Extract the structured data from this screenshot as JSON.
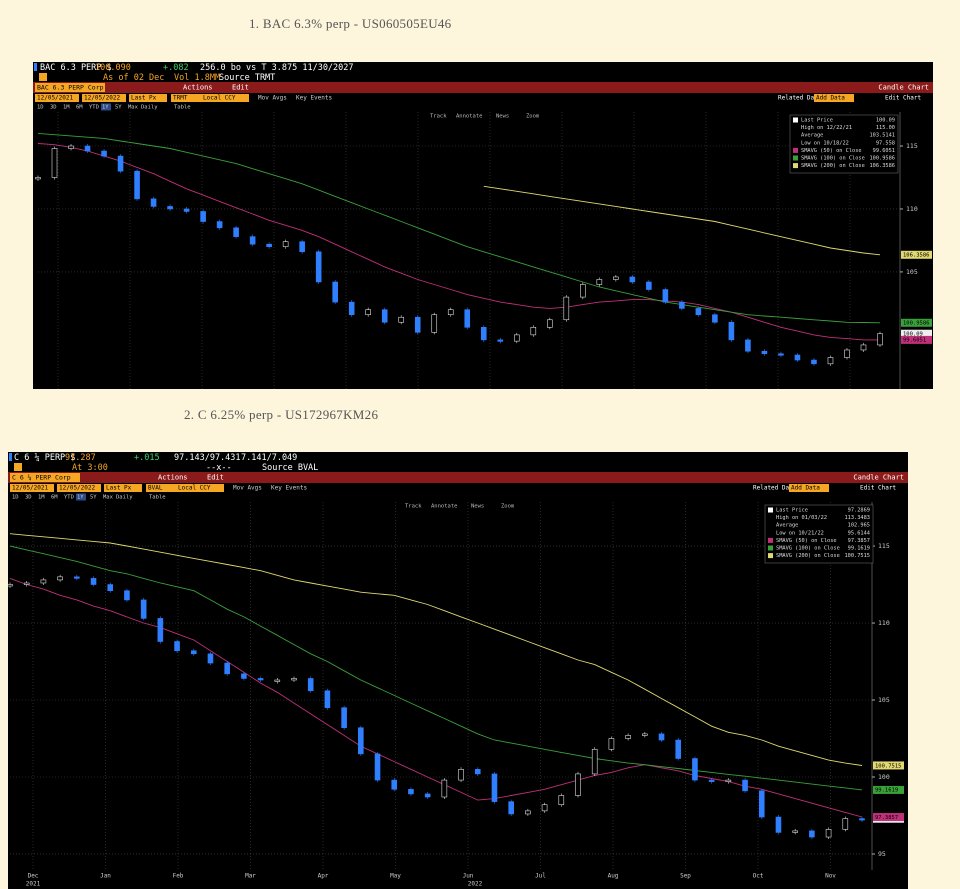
{
  "captions": [
    "1. BAC 6.3% perp - US060505EU46",
    "2. C 6.25% perp - US172967KM26"
  ],
  "chart_data": [
    {
      "type": "candlestick",
      "header": {
        "row1": [
          {
            "text": "BAC 6.3 PERP $",
            "color": "#ffffff"
          },
          {
            "text": "100.090",
            "color": "#f5a623"
          },
          {
            "text": "+.082",
            "color": "#3cd070"
          },
          {
            "text": "256.0 bo vs T 3.875 11/30/2027",
            "color": "#ffffff"
          }
        ],
        "row2": [
          {
            "text": "As of 02 Dec",
            "color": "#f5a623"
          },
          {
            "text": "Vol 1.8MM",
            "color": "#f5a623"
          },
          {
            "text": "Source TRMT",
            "color": "#ffffff"
          }
        ]
      },
      "toolbar": {
        "security": "BAC 6.3 PERP Corp",
        "actions": "Actions",
        "edit": "Edit",
        "chart_type": "Candle Chart",
        "fields": [
          "12/05/2021",
          "12/05/2022",
          "Last Px",
          "TRMT",
          "Local CCY"
        ],
        "options": [
          "Mov Avgs",
          "Key Events"
        ],
        "periods": [
          "1D",
          "3D",
          "1M",
          "6M",
          "YTD",
          "1Y",
          "5Y",
          "Max",
          "Daily",
          "Table"
        ],
        "tools": [
          "Track",
          "Annotate",
          "News",
          "Zoom"
        ],
        "related": "Related Data",
        "add_data": "Add Data",
        "edit_chart": "Edit Chart"
      },
      "ylim": [
        95.7,
        117.7
      ],
      "yticks": [
        105,
        110,
        115
      ],
      "grid": true,
      "stats": [
        {
          "label": "High on 12/22/21",
          "value": "115.00"
        },
        {
          "label": "Average",
          "value": "103.5141"
        },
        {
          "label": "Low on 10/18/22",
          "value": "97.558"
        }
      ],
      "series": [
        {
          "name": "Last Price",
          "color": "#2f7fff",
          "last_label": "100.09",
          "values": [
            112.5,
            114.8,
            115,
            114.6,
            114.2,
            113,
            110.8,
            110.2,
            110,
            109.8,
            109,
            108.5,
            107.8,
            107.2,
            107,
            107.4,
            106.6,
            104.2,
            102.6,
            101.6,
            102,
            101,
            101.4,
            100.2,
            101.6,
            102,
            100.6,
            99.6,
            99.5,
            100,
            100.6,
            101.2,
            103,
            104,
            104.4,
            104.6,
            104.2,
            103.6,
            102.6,
            102.1,
            101.6,
            101,
            99.6,
            98.7,
            98.5,
            98.4,
            98,
            97.7,
            98.2,
            98.8,
            99.2,
            100.09
          ]
        },
        {
          "name": "SMAVG (50) on Close",
          "color": "#c0307a",
          "last_label": "99.6051",
          "values": [
            115.2,
            115.1,
            114.9,
            114.6,
            114.2,
            113.8,
            113.3,
            112.8,
            112.2,
            111.6,
            111.1,
            110.6,
            110.1,
            109.6,
            109.1,
            108.7,
            108.3,
            107.8,
            107.2,
            106.6,
            106,
            105.4,
            104.9,
            104.4,
            104,
            103.6,
            103.2,
            102.9,
            102.6,
            102.4,
            102.2,
            102.1,
            102.2,
            102.4,
            102.6,
            102.7,
            102.8,
            102.8,
            102.7,
            102.6,
            102.4,
            102.1,
            101.8,
            101.4,
            101,
            100.6,
            100.3,
            100,
            99.8,
            99.7,
            99.6,
            99.6
          ]
        },
        {
          "name": "SMAVG (100) on Close",
          "color": "#3aa03a",
          "last_label": "100.9586",
          "values": [
            116,
            115.9,
            115.8,
            115.7,
            115.6,
            115.4,
            115.2,
            115,
            114.8,
            114.5,
            114.2,
            113.9,
            113.6,
            113.2,
            112.8,
            112.4,
            112,
            111.5,
            111,
            110.5,
            110,
            109.5,
            109,
            108.5,
            108,
            107.5,
            107,
            106.6,
            106.2,
            105.8,
            105.4,
            105,
            104.6,
            104.2,
            103.8,
            103.5,
            103.2,
            102.9,
            102.6,
            102.4,
            102.2,
            102,
            101.8,
            101.6,
            101.5,
            101.4,
            101.3,
            101.2,
            101.1,
            101,
            100.98,
            100.96
          ]
        },
        {
          "name": "SMAVG (200) on Close",
          "color": "#e0d870",
          "last_label": "106.3586",
          "values": [
            null,
            null,
            null,
            null,
            null,
            null,
            null,
            null,
            null,
            null,
            null,
            null,
            null,
            null,
            null,
            null,
            null,
            null,
            null,
            null,
            null,
            null,
            null,
            null,
            null,
            null,
            null,
            111.8,
            111.6,
            111.4,
            111.2,
            111,
            110.8,
            110.6,
            110.4,
            110.2,
            110,
            109.8,
            109.6,
            109.4,
            109.2,
            109,
            108.7,
            108.4,
            108.1,
            107.8,
            107.5,
            107.2,
            106.9,
            106.7,
            106.5,
            106.36
          ]
        }
      ]
    },
    {
      "type": "candlestick",
      "header": {
        "row1": [
          {
            "text": "C 6 ¼ PERP $",
            "color": "#ffffff"
          },
          {
            "text": "97.287",
            "color": "#f5a623"
          },
          {
            "text": "+.015",
            "color": "#3cd070"
          },
          {
            "text": "97.143/97.431",
            "color": "#ffffff"
          },
          {
            "text": "7.141/7.049",
            "color": "#ffffff"
          }
        ],
        "row2": [
          {
            "text": "At 3:00",
            "color": "#f5a623"
          },
          {
            "text": "--x--",
            "color": "#ffffff"
          },
          {
            "text": "Source BVAL",
            "color": "#ffffff"
          }
        ]
      },
      "toolbar": {
        "security": "C 6 ¼ PERP Corp",
        "actions": "Actions",
        "edit": "Edit",
        "chart_type": "Candle Chart",
        "fields": [
          "12/05/2021",
          "12/05/2022",
          "Last Px",
          "BVAL",
          "Local CCY"
        ],
        "options": [
          "Mov Avgs",
          "Key Events"
        ],
        "periods": [
          "1D",
          "3D",
          "1M",
          "6M",
          "YTD",
          "1Y",
          "5Y",
          "Max",
          "Daily",
          "Table"
        ],
        "tools": [
          "Track",
          "Annotate",
          "News",
          "Zoom"
        ],
        "related": "Related Data",
        "add_data": "Add Data",
        "edit_chart": "Edit Chart"
      },
      "months": [
        "Dec",
        "Jan",
        "Feb",
        "Mar",
        "Apr",
        "May",
        "Jun",
        "Jul",
        "Aug",
        "Sep",
        "Oct",
        "Nov"
      ],
      "years": [
        "2021",
        "2022"
      ],
      "ylim": [
        93.96,
        117.86
      ],
      "yticks": [
        95,
        100,
        105,
        110,
        115
      ],
      "grid": true,
      "stats": [
        {
          "label": "High on 01/03/22",
          "value": "113.3483"
        },
        {
          "label": "Average",
          "value": "102.965"
        },
        {
          "label": "Low on 10/21/22",
          "value": "95.6144"
        }
      ],
      "series": [
        {
          "name": "Last Price",
          "color": "#2f7fff",
          "last_label": "97.2869",
          "values": [
            112.5,
            112.6,
            112.8,
            113,
            112.9,
            112.5,
            112.1,
            111.5,
            110.3,
            108.8,
            108.2,
            108,
            107.4,
            106.7,
            106.4,
            106.3,
            106.3,
            106.4,
            105.6,
            104.5,
            103.2,
            101.5,
            99.8,
            99.2,
            98.9,
            98.7,
            99.8,
            100.5,
            100.2,
            98.4,
            97.6,
            97.8,
            98.2,
            98.8,
            100.2,
            101.8,
            102.5,
            102.7,
            102.8,
            102.4,
            101.2,
            99.8,
            99.7,
            99.8,
            99.1,
            97.4,
            96.4,
            96.5,
            96.1,
            96.6,
            97.3,
            97.29
          ]
        },
        {
          "name": "SMAVG (50) on Close",
          "color": "#c0307a",
          "last_label": "97.3857",
          "values": [
            112.9,
            112.5,
            112.2,
            111.8,
            111.5,
            111.1,
            110.8,
            110.4,
            110,
            109.7,
            109.3,
            108.9,
            108.2,
            107.5,
            106.8,
            106.1,
            105.5,
            104.8,
            104.1,
            103.4,
            102.7,
            102,
            101.5,
            101,
            100.5,
            100,
            99.5,
            99,
            98.5,
            98.6,
            98.8,
            99,
            99.2,
            99.5,
            99.8,
            100.1,
            100.3,
            100.6,
            100.8,
            100.6,
            100.4,
            100.1,
            99.9,
            99.7,
            99.4,
            99.2,
            98.9,
            98.6,
            98.3,
            98,
            97.7,
            97.4
          ]
        },
        {
          "name": "SMAVG (100) on Close",
          "color": "#3aa03a",
          "last_label": "99.1619",
          "values": [
            115,
            114.75,
            114.5,
            114.25,
            114,
            113.7,
            113.4,
            113.2,
            112.9,
            112.6,
            112.35,
            112.1,
            111.5,
            110.9,
            110.4,
            109.8,
            109.2,
            108.6,
            108,
            107.5,
            106.9,
            106.3,
            105.8,
            105.3,
            104.8,
            104.3,
            103.8,
            103.3,
            102.8,
            102.4,
            102.2,
            102,
            101.8,
            101.6,
            101.4,
            101.2,
            101.05,
            100.9,
            100.8,
            100.67,
            100.55,
            100.42,
            100.3,
            100.17,
            100.05,
            99.92,
            99.8,
            99.67,
            99.54,
            99.41,
            99.29,
            99.16
          ]
        },
        {
          "name": "SMAVG (200) on Close",
          "color": "#e0d870",
          "last_label": "100.7515",
          "values": [
            115.8,
            115.7,
            115.6,
            115.5,
            115.4,
            115.3,
            115.2,
            115,
            114.8,
            114.6,
            114.4,
            114.2,
            114,
            113.8,
            113.6,
            113.4,
            113.1,
            112.8,
            112.6,
            112.4,
            112.2,
            112,
            111.9,
            111.8,
            111.5,
            111.2,
            110.8,
            110.4,
            110,
            109.6,
            109.2,
            108.8,
            108.4,
            108,
            107.6,
            107.3,
            106.8,
            106.3,
            105.7,
            105.1,
            104.5,
            103.9,
            103.3,
            102.9,
            102.7,
            102.4,
            102,
            101.7,
            101.4,
            101.1,
            100.9,
            100.75
          ]
        }
      ]
    }
  ]
}
